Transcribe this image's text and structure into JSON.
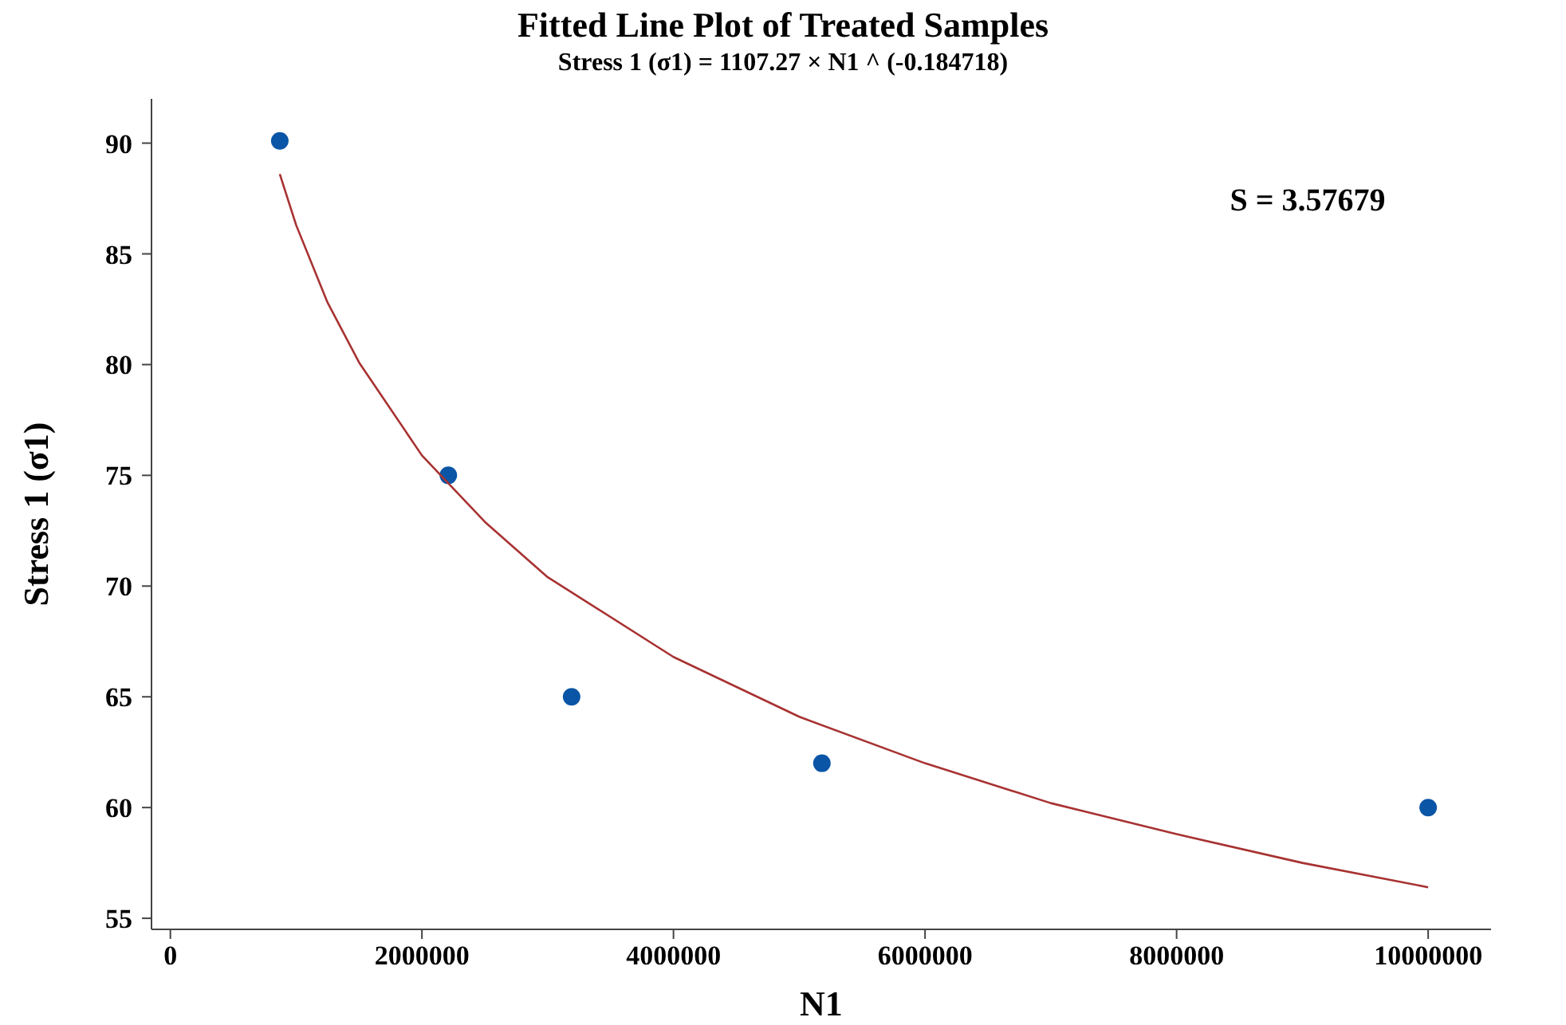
{
  "chart_data": {
    "type": "scatter",
    "title": "Fitted Line Plot of Treated Samples",
    "subtitle": "Stress 1 (σ1) = 1107.27 × N1 ^ (-0.184718)",
    "xlabel": "N1",
    "ylabel": "Stress 1 (σ1)",
    "annotations": [
      "S = 3.57679"
    ],
    "xlim": [
      -150000,
      10500000
    ],
    "xticks": [
      0,
      2000000,
      4000000,
      6000000,
      8000000,
      10000000
    ],
    "ylim": [
      54.5,
      92
    ],
    "yticks": [
      55,
      60,
      65,
      70,
      75,
      80,
      85,
      90
    ],
    "grid": false,
    "series": [
      {
        "color": "#0a55a5",
        "marker": "circle",
        "x": [
          870000,
          2210000,
          3190000,
          5180000,
          10000000
        ],
        "values": [
          90.1,
          75,
          65,
          62,
          60
        ]
      },
      {
        "type": "line",
        "color": "#a83232",
        "marker": "none",
        "line_style": "solid",
        "x": [
          870000,
          1000000,
          1250000,
          1500000,
          2000000,
          2500000,
          3000000,
          4000000,
          5000000,
          6000000,
          7000000,
          8000000,
          9000000,
          10000000
        ],
        "values": [
          88.6,
          86.3,
          82.8,
          80.1,
          75.9,
          72.9,
          70.4,
          66.8,
          64.1,
          62.0,
          60.2,
          58.8,
          57.5,
          56.4
        ]
      }
    ]
  }
}
